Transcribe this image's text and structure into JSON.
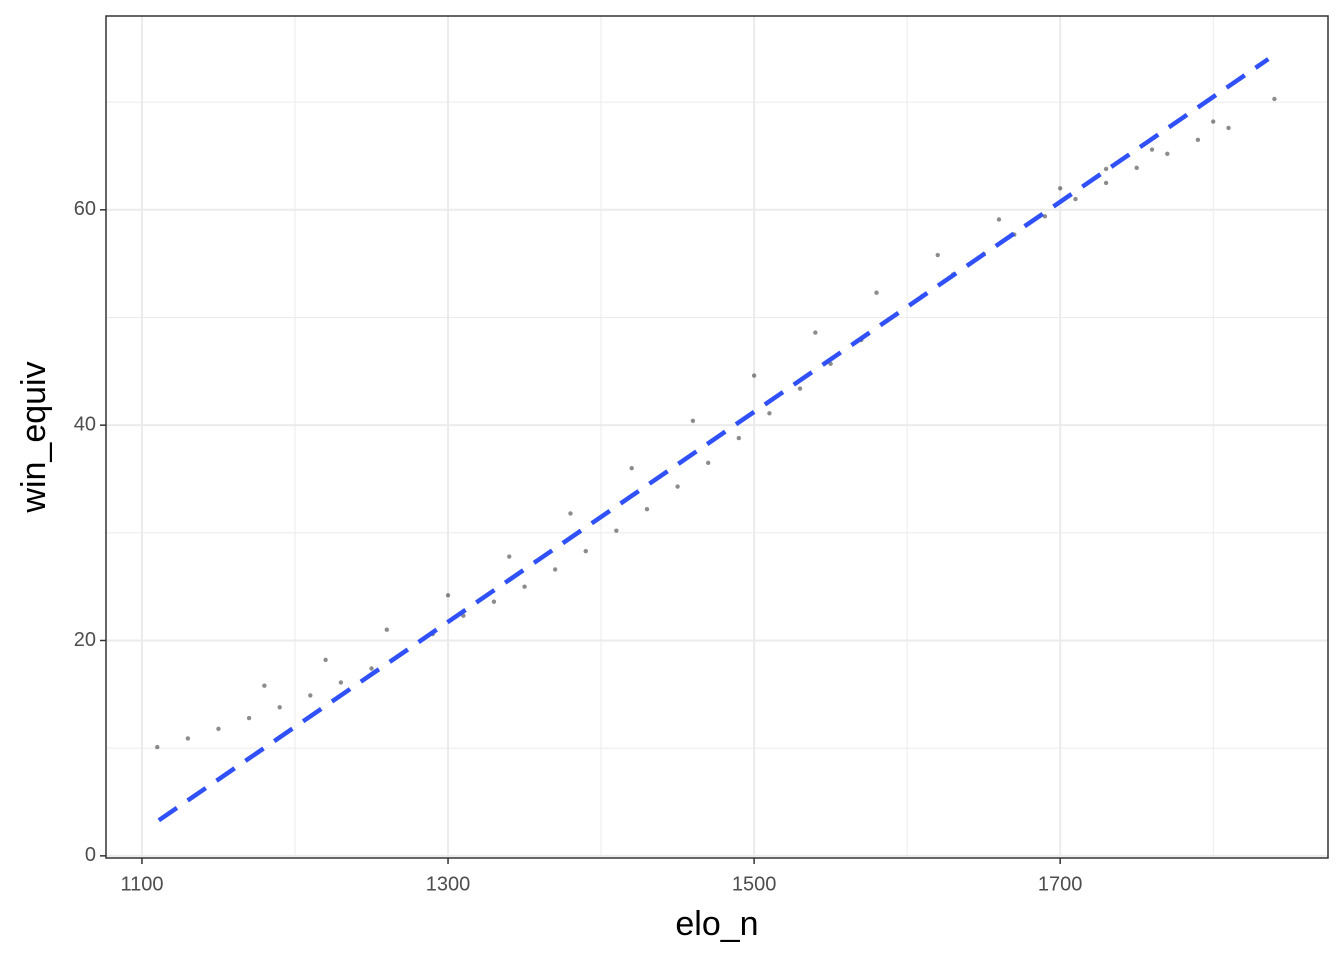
{
  "chart_data": {
    "type": "scatter",
    "x_label": "elo_n",
    "y_label": "win_equiv",
    "xlim": [
      1076.5,
      1875
    ],
    "ylim": [
      -0.2,
      78
    ],
    "xticks": [
      1100,
      1300,
      1500,
      1700
    ],
    "yticks": [
      0,
      20,
      40,
      60
    ],
    "x_minor_grid": [
      1200,
      1400,
      1600,
      1800
    ],
    "y_minor_grid": [
      10,
      30,
      50,
      70
    ],
    "grid": true,
    "series": [
      {
        "type": "scatter",
        "color": "#000000",
        "x": [
          1110,
          1130,
          1150,
          1170,
          1190,
          1210,
          1230,
          1250,
          1270,
          1290,
          1310,
          1330,
          1350,
          1370,
          1390,
          1410,
          1430,
          1450,
          1470,
          1490,
          1510,
          1530,
          1550,
          1570,
          1590,
          1610,
          1630,
          1650,
          1670,
          1690,
          1710,
          1730,
          1750,
          1770,
          1790,
          1810,
          1840,
          1180,
          1220,
          1260,
          1300,
          1340,
          1380,
          1420,
          1460,
          1500,
          1540,
          1580,
          1620,
          1660,
          1700,
          1730,
          1760,
          1800
        ],
        "values": [
          10.1,
          10.9,
          11.8,
          12.8,
          13.8,
          14.9,
          16.1,
          17.4,
          18.8,
          20.6,
          22.3,
          23.6,
          25.0,
          26.6,
          28.3,
          30.2,
          32.2,
          34.3,
          36.5,
          38.8,
          41.1,
          43.4,
          45.7,
          47.9,
          50.0,
          52.0,
          54.0,
          55.9,
          57.7,
          59.4,
          61.0,
          62.5,
          63.9,
          65.2,
          66.5,
          67.6,
          70.3,
          15.8,
          18.2,
          21.0,
          24.2,
          27.8,
          31.8,
          36.0,
          40.4,
          44.6,
          48.6,
          52.3,
          55.8,
          59.1,
          62.0,
          63.8,
          65.6,
          68.2
        ]
      },
      {
        "type": "line",
        "color": "#3050f8",
        "dashed": true,
        "x": [
          1111,
          1836
        ],
        "values": [
          3.3,
          74.0
        ]
      }
    ]
  }
}
